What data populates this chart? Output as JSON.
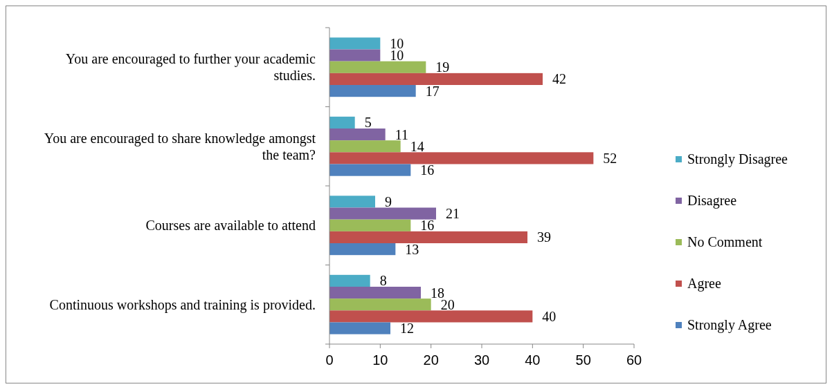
{
  "chart_data": {
    "type": "bar",
    "orientation": "horizontal",
    "categories": [
      "You are encouraged to further your academic studies.",
      "You are encouraged to share knowledge amongst the team?",
      "Courses are available to attend",
      "Continuous workshops and training is provided."
    ],
    "series": [
      {
        "name": "Strongly Disagree",
        "color": "#4bacc6",
        "values": [
          10,
          5,
          9,
          8
        ]
      },
      {
        "name": "Disagree",
        "color": "#8064a2",
        "values": [
          10,
          11,
          21,
          18
        ]
      },
      {
        "name": "No Comment",
        "color": "#9bbb59",
        "values": [
          19,
          14,
          16,
          20
        ]
      },
      {
        "name": "Agree",
        "color": "#c0504d",
        "values": [
          42,
          52,
          39,
          40
        ]
      },
      {
        "name": "Strongly Agree",
        "color": "#4f81bd",
        "values": [
          17,
          16,
          13,
          12
        ]
      }
    ],
    "xlim": [
      0,
      60
    ],
    "xticks": [
      0,
      10,
      20,
      30,
      40,
      50,
      60
    ],
    "data_labels": true,
    "legend": "right",
    "grid": false
  }
}
